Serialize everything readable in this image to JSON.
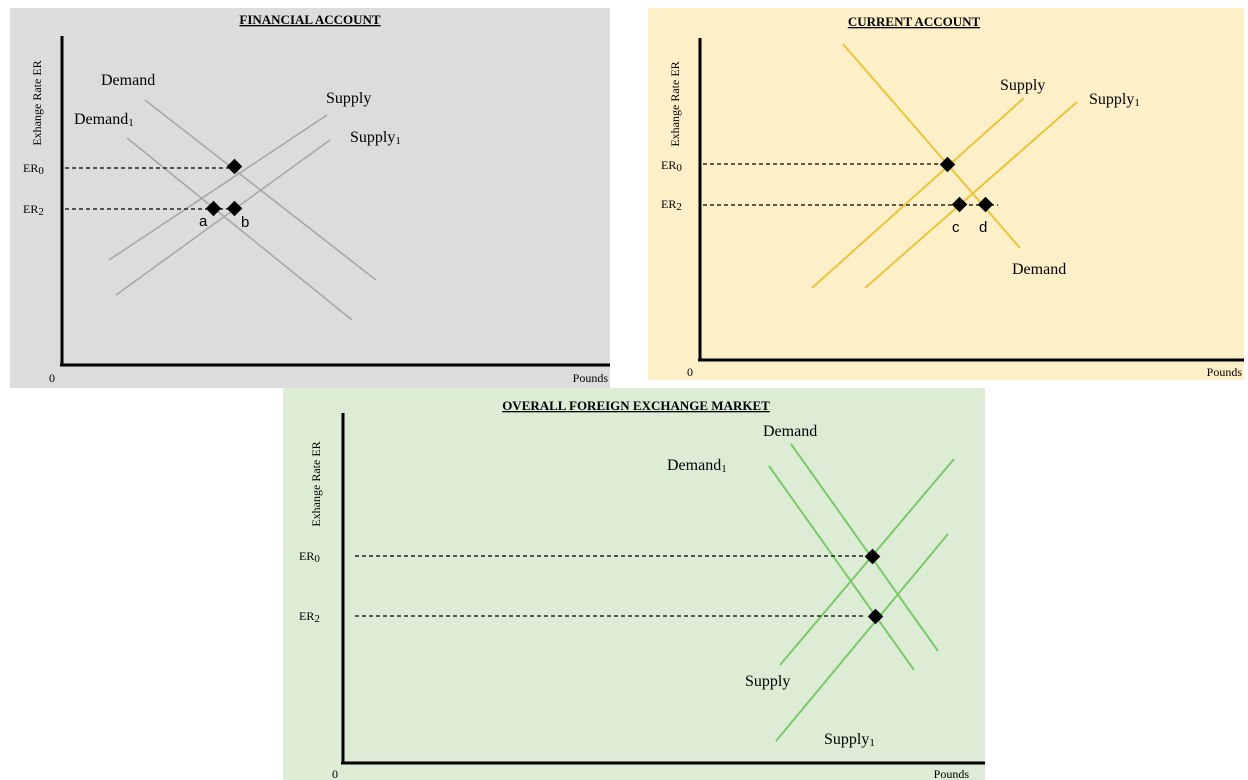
{
  "panels": [
    {
      "id": "financial",
      "title": "FINANCIAL ACCOUNT",
      "y_axis_label": "Exhange Rate ER",
      "x_axis_label": "Pounds",
      "origin_label": "0",
      "tick_labels": [
        {
          "base": "ER",
          "sub": "0"
        },
        {
          "base": "ER",
          "sub": "2"
        }
      ],
      "curve_labels": [
        {
          "base": "Demand",
          "sub": ""
        },
        {
          "base": "Demand",
          "sub": "1"
        },
        {
          "base": "Supply",
          "sub": ""
        },
        {
          "base": "Supply",
          "sub": "1"
        }
      ],
      "point_labels": [
        "a",
        "b"
      ],
      "colors": {
        "background": "#dcdcdc",
        "line": "#a8a8a8"
      }
    },
    {
      "id": "current",
      "title": "CURRENT ACCOUNT",
      "y_axis_label": "Exhange Rate ER",
      "x_axis_label": "Pounds",
      "origin_label": "0",
      "tick_labels": [
        {
          "base": "ER",
          "sub": "0"
        },
        {
          "base": "ER",
          "sub": "2"
        }
      ],
      "curve_labels": [
        {
          "base": "Supply",
          "sub": ""
        },
        {
          "base": "Supply",
          "sub": "1"
        },
        {
          "base": "Demand",
          "sub": ""
        }
      ],
      "point_labels": [
        "c",
        "d"
      ],
      "colors": {
        "background": "#fdf0c9",
        "line": "#e8c53a"
      }
    },
    {
      "id": "overall",
      "title": "OVERALL FOREIGN EXCHANGE MARKET",
      "y_axis_label": "Exhange Rate ER",
      "x_axis_label": "Pounds",
      "origin_label": "0",
      "tick_labels": [
        {
          "base": "ER",
          "sub": "0"
        },
        {
          "base": "ER",
          "sub": "2"
        }
      ],
      "curve_labels": [
        {
          "base": "Demand",
          "sub": ""
        },
        {
          "base": "Demand",
          "sub": "1"
        },
        {
          "base": "Supply",
          "sub": ""
        },
        {
          "base": "Supply",
          "sub": "1"
        }
      ],
      "colors": {
        "background": "#dcecd5",
        "line": "#7cc86a"
      }
    }
  ]
}
